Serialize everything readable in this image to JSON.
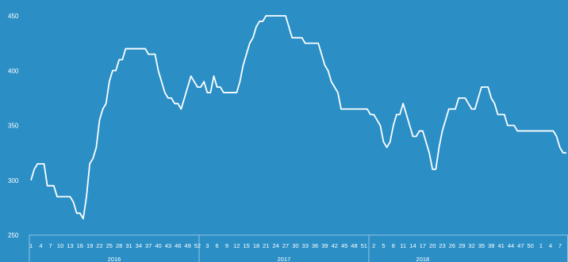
{
  "colors": {
    "background": "#2b8fc6",
    "line": "#ffffff",
    "axis": "#8fc3e3"
  },
  "chart_data": {
    "type": "line",
    "title": "",
    "xlabel": "",
    "ylabel": "",
    "ylim": [
      250,
      450
    ],
    "y_ticks": [
      "250",
      "300",
      "350",
      "400",
      "450"
    ],
    "grid": false,
    "legend": "none",
    "years": [
      {
        "label": "2016",
        "weeks": 52
      },
      {
        "label": "2017",
        "weeks": 52
      },
      {
        "label": "2018",
        "weeks": 33
      }
    ],
    "x_tick_labels": [
      "1",
      "4",
      "7",
      "10",
      "13",
      "16",
      "19",
      "22",
      "25",
      "28",
      "31",
      "34",
      "37",
      "40",
      "43",
      "46",
      "49",
      "52",
      "3",
      "6",
      "9",
      "12",
      "15",
      "18",
      "21",
      "24",
      "27",
      "30",
      "33",
      "36",
      "39",
      "42",
      "45",
      "48",
      "51",
      "2",
      "5",
      "8",
      "11",
      "14",
      "17",
      "20",
      "23",
      "26",
      "29",
      "32",
      "35",
      "38",
      "41",
      "44",
      "47",
      "50",
      "1",
      "4",
      "7"
    ],
    "series": [
      {
        "values": [
          300,
          310,
          315,
          315,
          315,
          295,
          295,
          295,
          285,
          285,
          285,
          285,
          285,
          280,
          270,
          270,
          265,
          285,
          315,
          320,
          330,
          355,
          365,
          370,
          390,
          400,
          400,
          410,
          410,
          420,
          420,
          420,
          420,
          420,
          420,
          420,
          415,
          415,
          415,
          400,
          390,
          380,
          375,
          375,
          370,
          370,
          365,
          375,
          385,
          395,
          390,
          385,
          385,
          390,
          380,
          380,
          395,
          385,
          385,
          380,
          380,
          380,
          380,
          380,
          390,
          405,
          415,
          425,
          430,
          440,
          445,
          445,
          450,
          450,
          450,
          450,
          450,
          450,
          450,
          440,
          430,
          430,
          430,
          430,
          425,
          425,
          425,
          425,
          425,
          415,
          405,
          400,
          390,
          385,
          380,
          365,
          365,
          365,
          365,
          365,
          365,
          365,
          365,
          365,
          360,
          360,
          355,
          350,
          335,
          330,
          335,
          350,
          360,
          360,
          370,
          360,
          350,
          340,
          340,
          345,
          345,
          335,
          325,
          310,
          310,
          330,
          345,
          355,
          365,
          365,
          365,
          375,
          375,
          375,
          370,
          365,
          365,
          375,
          385,
          385,
          385,
          375,
          370,
          360,
          360,
          360,
          350,
          350,
          350,
          345,
          345,
          345,
          345,
          345,
          345,
          345,
          345,
          345,
          345,
          345,
          345,
          340,
          330,
          325,
          325
        ]
      }
    ]
  }
}
